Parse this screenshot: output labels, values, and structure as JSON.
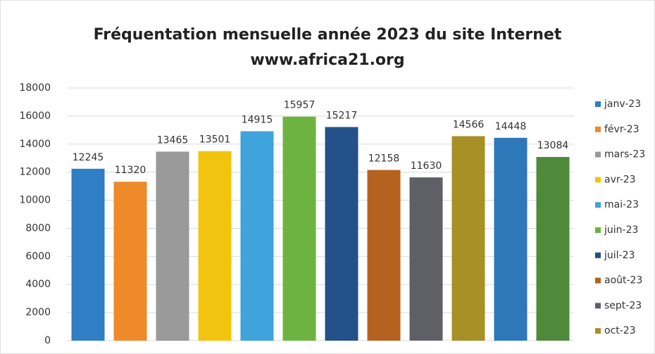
{
  "chart_data": {
    "type": "bar",
    "title": "Fréquentation mensuelle année 2023 du site Internet",
    "subtitle": "www.africa21.org",
    "ylim": [
      0,
      18000
    ],
    "yticks": [
      0,
      2000,
      4000,
      6000,
      8000,
      10000,
      12000,
      14000,
      16000,
      18000
    ],
    "grid": true,
    "legend": "right",
    "series": [
      {
        "name": "janv-23",
        "color": "#2e7fc4",
        "values": [
          12245
        ]
      },
      {
        "name": "févr-23",
        "color": "#ee8a2a",
        "values": [
          11320
        ]
      },
      {
        "name": "mars-23",
        "color": "#9a9a9a",
        "values": [
          13465
        ]
      },
      {
        "name": "avr-23",
        "color": "#f2c40f",
        "values": [
          13501
        ]
      },
      {
        "name": "mai-23",
        "color": "#3fa3dc",
        "values": [
          14915
        ]
      },
      {
        "name": "juin-23",
        "color": "#6db33f",
        "values": [
          15957
        ]
      },
      {
        "name": "juil-23",
        "color": "#24518a",
        "values": [
          15217
        ]
      },
      {
        "name": "août-23",
        "color": "#b5621f",
        "values": [
          12158
        ]
      },
      {
        "name": "sept-23",
        "color": "#5f5f66",
        "values": [
          11630
        ]
      },
      {
        "name": "oct-23",
        "color": "#a88f26",
        "values": [
          14566
        ]
      },
      {
        "name": null,
        "color": "#2d78b8",
        "values": [
          14448
        ]
      },
      {
        "name": null,
        "color": "#4e8a3a",
        "values": [
          13084
        ]
      }
    ]
  }
}
